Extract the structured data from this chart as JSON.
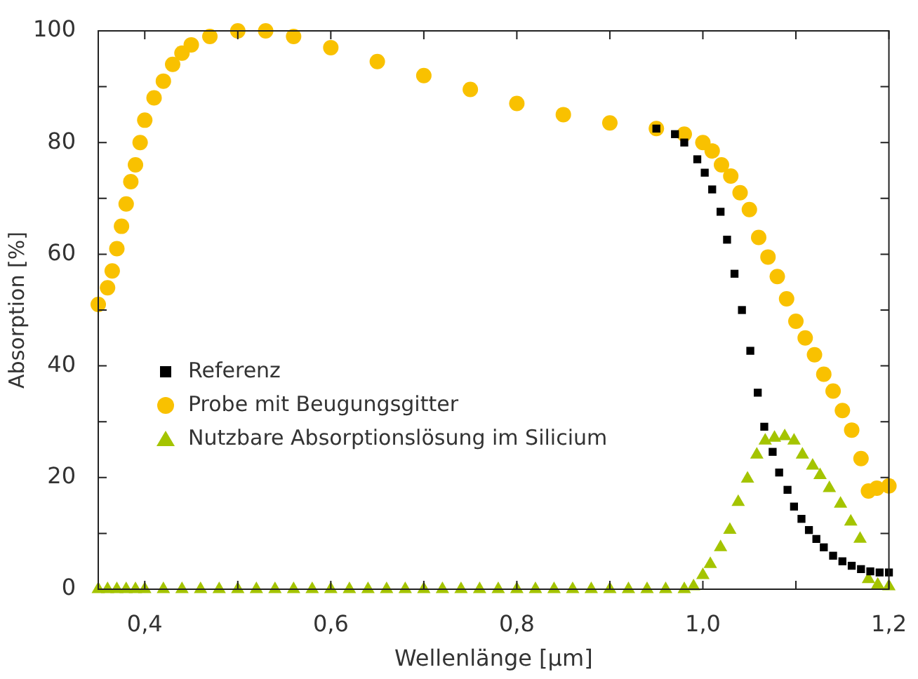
{
  "chart_data": {
    "type": "scatter",
    "xlabel": "Wellenlänge [µm]",
    "ylabel": "Absorption [%]",
    "xlim": [
      0.35,
      1.2
    ],
    "ylim": [
      0,
      100
    ],
    "xticks": [
      {
        "value": 0.4,
        "label": "0,4"
      },
      {
        "value": 0.5,
        "label": null
      },
      {
        "value": 0.6,
        "label": "0,6"
      },
      {
        "value": 0.7,
        "label": null
      },
      {
        "value": 0.8,
        "label": "0,8"
      },
      {
        "value": 0.9,
        "label": null
      },
      {
        "value": 1.0,
        "label": "1,0"
      },
      {
        "value": 1.1,
        "label": null
      },
      {
        "value": 1.2,
        "label": "1,2"
      }
    ],
    "yticks": [
      0,
      {
        "value": 10,
        "label": null
      },
      20,
      {
        "value": 30,
        "label": null
      },
      40,
      {
        "value": 50,
        "label": null
      },
      60,
      {
        "value": 70,
        "label": null
      },
      80,
      {
        "value": 90,
        "label": null
      },
      100
    ],
    "grid": false,
    "legend": "left",
    "series": [
      {
        "name": "Referenz",
        "color": "#000000",
        "marker": "square",
        "x": [
          0.95,
          0.97,
          0.98,
          0.994,
          1.002,
          1.01,
          1.019,
          1.026,
          1.034,
          1.042,
          1.051,
          1.059,
          1.066,
          1.075,
          1.082,
          1.091,
          1.098,
          1.106,
          1.114,
          1.122,
          1.13,
          1.14,
          1.15,
          1.16,
          1.17,
          1.18,
          1.19,
          1.2
        ],
        "values": [
          82.5,
          81.5,
          80,
          77,
          74.6,
          71.6,
          67.6,
          62.6,
          56.5,
          50,
          42.7,
          35.2,
          29.1,
          24.6,
          20.9,
          17.8,
          14.8,
          12.6,
          10.6,
          9,
          7.5,
          6,
          5,
          4.2,
          3.6,
          3.2,
          3,
          3
        ]
      },
      {
        "name": "Probe mit Beugungsgitter",
        "color": "#f9c100",
        "marker": "circle",
        "x": [
          0.35,
          0.36,
          0.365,
          0.37,
          0.375,
          0.38,
          0.385,
          0.39,
          0.395,
          0.4,
          0.41,
          0.42,
          0.43,
          0.44,
          0.45,
          0.47,
          0.5,
          0.53,
          0.56,
          0.6,
          0.65,
          0.7,
          0.75,
          0.8,
          0.85,
          0.9,
          0.95,
          0.98,
          1.0,
          1.01,
          1.02,
          1.03,
          1.04,
          1.05,
          1.06,
          1.07,
          1.08,
          1.09,
          1.1,
          1.11,
          1.12,
          1.13,
          1.14,
          1.15,
          1.16,
          1.17,
          1.178,
          1.187,
          1.2
        ],
        "values": [
          51,
          54,
          57,
          61,
          65,
          69,
          73,
          76,
          80,
          84,
          88,
          91,
          94,
          96,
          97.5,
          99,
          100,
          100,
          99,
          97,
          94.5,
          92,
          89.5,
          87,
          85,
          83.5,
          82.5,
          81.5,
          80,
          78.5,
          76,
          74,
          71,
          68,
          63,
          59.5,
          56,
          52,
          48,
          45,
          42,
          38.5,
          35.5,
          32,
          28.5,
          23.4,
          17.6,
          18.1,
          18.5
        ]
      },
      {
        "name": "Nutzbare Absorptionslösung im Silicium",
        "color": "#a4c400",
        "marker": "triangle",
        "x": [
          0.35,
          0.36,
          0.37,
          0.38,
          0.39,
          0.4,
          0.42,
          0.44,
          0.46,
          0.48,
          0.5,
          0.52,
          0.54,
          0.56,
          0.58,
          0.6,
          0.62,
          0.64,
          0.66,
          0.68,
          0.7,
          0.72,
          0.74,
          0.76,
          0.78,
          0.8,
          0.82,
          0.84,
          0.86,
          0.88,
          0.9,
          0.92,
          0.94,
          0.96,
          0.98,
          0.99,
          1.0,
          1.008,
          1.019,
          1.029,
          1.038,
          1.048,
          1.058,
          1.067,
          1.077,
          1.088,
          1.098,
          1.107,
          1.118,
          1.126,
          1.136,
          1.148,
          1.159,
          1.169,
          1.178,
          1.188,
          1.2
        ],
        "values": [
          0,
          0,
          0,
          0,
          0,
          0,
          0,
          0,
          0,
          0,
          0,
          0,
          0,
          0,
          0,
          0,
          0,
          0,
          0,
          0,
          0,
          0,
          0,
          0,
          0,
          0,
          0,
          0,
          0,
          0,
          0,
          0,
          0,
          0,
          0,
          0.5,
          2.5,
          4.5,
          7.5,
          10.6,
          15.6,
          19.8,
          24.1,
          26.6,
          27.1,
          27.4,
          26.6,
          24.1,
          22.1,
          20.4,
          18.1,
          15.3,
          12.1,
          9,
          1.8,
          0.8,
          0.5
        ]
      }
    ]
  }
}
